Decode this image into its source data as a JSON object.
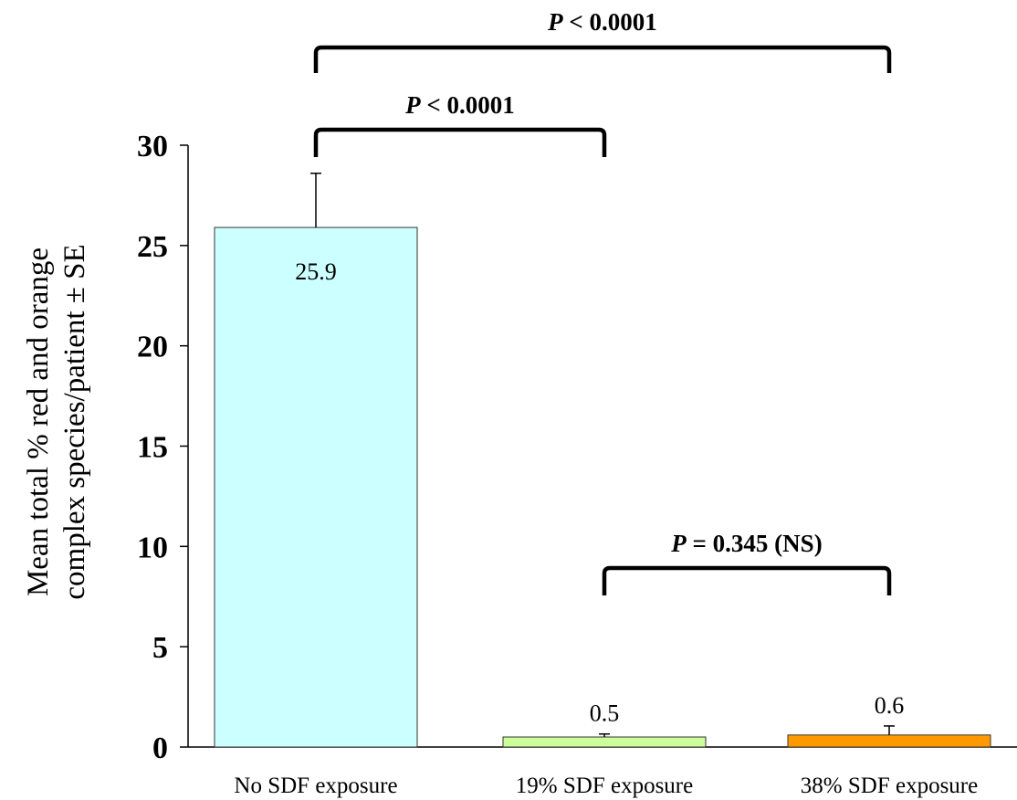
{
  "chart_data": {
    "type": "bar",
    "categories": [
      "No SDF exposure",
      "19% SDF exposure",
      "38% SDF exposure"
    ],
    "values": [
      25.9,
      0.5,
      0.6
    ],
    "value_labels": [
      "25.9",
      "0.5",
      "0.6"
    ],
    "errors": [
      2.7,
      0.15,
      0.45
    ],
    "colors": [
      "#ccffff",
      "#ccff99",
      "#ff9900"
    ],
    "ylabel_lines": [
      "Mean total % red and orange",
      "complex  species/patient ± SE"
    ],
    "ylim": [
      0,
      30
    ],
    "yticks": [
      0,
      5,
      10,
      15,
      20,
      25,
      30
    ],
    "grid": false,
    "significance": [
      {
        "from": 0,
        "to": 1,
        "p_symbol": "P",
        "text": " < 0.0001"
      },
      {
        "from": 0,
        "to": 2,
        "p_symbol": "P",
        "text": " < 0.0001"
      },
      {
        "from": 1,
        "to": 2,
        "p_symbol": "P",
        "text": " = 0.345 (NS)"
      }
    ]
  }
}
